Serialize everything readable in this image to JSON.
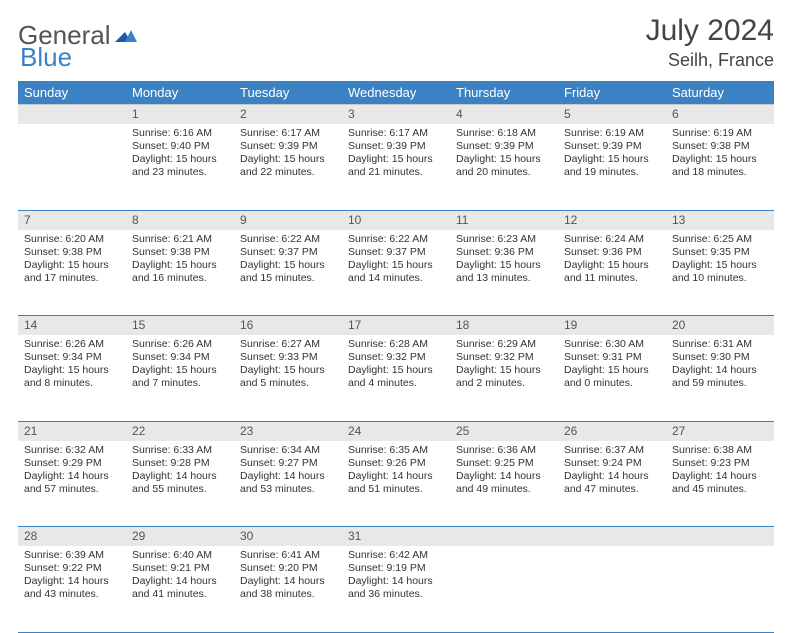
{
  "brand": {
    "general": "General",
    "blue": "Blue"
  },
  "title": {
    "month_year": "July 2024",
    "location": "Seilh, France"
  },
  "headers": [
    "Sunday",
    "Monday",
    "Tuesday",
    "Wednesday",
    "Thursday",
    "Friday",
    "Saturday"
  ],
  "colors": {
    "accent": "#3b82c4",
    "header_bg": "#3b82c4",
    "daynum_bg": "#e8e8e8",
    "text": "#333333"
  },
  "weeks": [
    {
      "nums": [
        "",
        "1",
        "2",
        "3",
        "4",
        "5",
        "6"
      ],
      "cells": [
        null,
        {
          "sunrise": "Sunrise: 6:16 AM",
          "sunset": "Sunset: 9:40 PM",
          "day1": "Daylight: 15 hours",
          "day2": "and 23 minutes."
        },
        {
          "sunrise": "Sunrise: 6:17 AM",
          "sunset": "Sunset: 9:39 PM",
          "day1": "Daylight: 15 hours",
          "day2": "and 22 minutes."
        },
        {
          "sunrise": "Sunrise: 6:17 AM",
          "sunset": "Sunset: 9:39 PM",
          "day1": "Daylight: 15 hours",
          "day2": "and 21 minutes."
        },
        {
          "sunrise": "Sunrise: 6:18 AM",
          "sunset": "Sunset: 9:39 PM",
          "day1": "Daylight: 15 hours",
          "day2": "and 20 minutes."
        },
        {
          "sunrise": "Sunrise: 6:19 AM",
          "sunset": "Sunset: 9:39 PM",
          "day1": "Daylight: 15 hours",
          "day2": "and 19 minutes."
        },
        {
          "sunrise": "Sunrise: 6:19 AM",
          "sunset": "Sunset: 9:38 PM",
          "day1": "Daylight: 15 hours",
          "day2": "and 18 minutes."
        }
      ]
    },
    {
      "nums": [
        "7",
        "8",
        "9",
        "10",
        "11",
        "12",
        "13"
      ],
      "cells": [
        {
          "sunrise": "Sunrise: 6:20 AM",
          "sunset": "Sunset: 9:38 PM",
          "day1": "Daylight: 15 hours",
          "day2": "and 17 minutes."
        },
        {
          "sunrise": "Sunrise: 6:21 AM",
          "sunset": "Sunset: 9:38 PM",
          "day1": "Daylight: 15 hours",
          "day2": "and 16 minutes."
        },
        {
          "sunrise": "Sunrise: 6:22 AM",
          "sunset": "Sunset: 9:37 PM",
          "day1": "Daylight: 15 hours",
          "day2": "and 15 minutes."
        },
        {
          "sunrise": "Sunrise: 6:22 AM",
          "sunset": "Sunset: 9:37 PM",
          "day1": "Daylight: 15 hours",
          "day2": "and 14 minutes."
        },
        {
          "sunrise": "Sunrise: 6:23 AM",
          "sunset": "Sunset: 9:36 PM",
          "day1": "Daylight: 15 hours",
          "day2": "and 13 minutes."
        },
        {
          "sunrise": "Sunrise: 6:24 AM",
          "sunset": "Sunset: 9:36 PM",
          "day1": "Daylight: 15 hours",
          "day2": "and 11 minutes."
        },
        {
          "sunrise": "Sunrise: 6:25 AM",
          "sunset": "Sunset: 9:35 PM",
          "day1": "Daylight: 15 hours",
          "day2": "and 10 minutes."
        }
      ]
    },
    {
      "nums": [
        "14",
        "15",
        "16",
        "17",
        "18",
        "19",
        "20"
      ],
      "cells": [
        {
          "sunrise": "Sunrise: 6:26 AM",
          "sunset": "Sunset: 9:34 PM",
          "day1": "Daylight: 15 hours",
          "day2": "and 8 minutes."
        },
        {
          "sunrise": "Sunrise: 6:26 AM",
          "sunset": "Sunset: 9:34 PM",
          "day1": "Daylight: 15 hours",
          "day2": "and 7 minutes."
        },
        {
          "sunrise": "Sunrise: 6:27 AM",
          "sunset": "Sunset: 9:33 PM",
          "day1": "Daylight: 15 hours",
          "day2": "and 5 minutes."
        },
        {
          "sunrise": "Sunrise: 6:28 AM",
          "sunset": "Sunset: 9:32 PM",
          "day1": "Daylight: 15 hours",
          "day2": "and 4 minutes."
        },
        {
          "sunrise": "Sunrise: 6:29 AM",
          "sunset": "Sunset: 9:32 PM",
          "day1": "Daylight: 15 hours",
          "day2": "and 2 minutes."
        },
        {
          "sunrise": "Sunrise: 6:30 AM",
          "sunset": "Sunset: 9:31 PM",
          "day1": "Daylight: 15 hours",
          "day2": "and 0 minutes."
        },
        {
          "sunrise": "Sunrise: 6:31 AM",
          "sunset": "Sunset: 9:30 PM",
          "day1": "Daylight: 14 hours",
          "day2": "and 59 minutes."
        }
      ]
    },
    {
      "nums": [
        "21",
        "22",
        "23",
        "24",
        "25",
        "26",
        "27"
      ],
      "cells": [
        {
          "sunrise": "Sunrise: 6:32 AM",
          "sunset": "Sunset: 9:29 PM",
          "day1": "Daylight: 14 hours",
          "day2": "and 57 minutes."
        },
        {
          "sunrise": "Sunrise: 6:33 AM",
          "sunset": "Sunset: 9:28 PM",
          "day1": "Daylight: 14 hours",
          "day2": "and 55 minutes."
        },
        {
          "sunrise": "Sunrise: 6:34 AM",
          "sunset": "Sunset: 9:27 PM",
          "day1": "Daylight: 14 hours",
          "day2": "and 53 minutes."
        },
        {
          "sunrise": "Sunrise: 6:35 AM",
          "sunset": "Sunset: 9:26 PM",
          "day1": "Daylight: 14 hours",
          "day2": "and 51 minutes."
        },
        {
          "sunrise": "Sunrise: 6:36 AM",
          "sunset": "Sunset: 9:25 PM",
          "day1": "Daylight: 14 hours",
          "day2": "and 49 minutes."
        },
        {
          "sunrise": "Sunrise: 6:37 AM",
          "sunset": "Sunset: 9:24 PM",
          "day1": "Daylight: 14 hours",
          "day2": "and 47 minutes."
        },
        {
          "sunrise": "Sunrise: 6:38 AM",
          "sunset": "Sunset: 9:23 PM",
          "day1": "Daylight: 14 hours",
          "day2": "and 45 minutes."
        }
      ]
    },
    {
      "nums": [
        "28",
        "29",
        "30",
        "31",
        "",
        "",
        ""
      ],
      "cells": [
        {
          "sunrise": "Sunrise: 6:39 AM",
          "sunset": "Sunset: 9:22 PM",
          "day1": "Daylight: 14 hours",
          "day2": "and 43 minutes."
        },
        {
          "sunrise": "Sunrise: 6:40 AM",
          "sunset": "Sunset: 9:21 PM",
          "day1": "Daylight: 14 hours",
          "day2": "and 41 minutes."
        },
        {
          "sunrise": "Sunrise: 6:41 AM",
          "sunset": "Sunset: 9:20 PM",
          "day1": "Daylight: 14 hours",
          "day2": "and 38 minutes."
        },
        {
          "sunrise": "Sunrise: 6:42 AM",
          "sunset": "Sunset: 9:19 PM",
          "day1": "Daylight: 14 hours",
          "day2": "and 36 minutes."
        },
        null,
        null,
        null
      ]
    }
  ]
}
